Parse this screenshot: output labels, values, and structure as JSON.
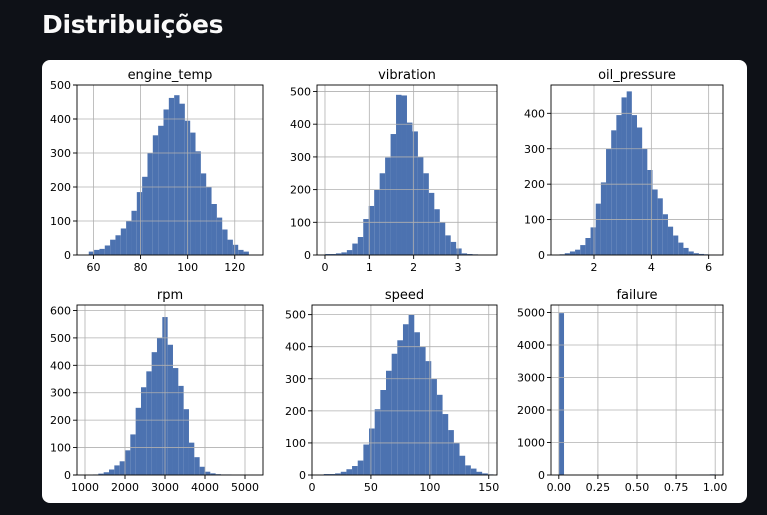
{
  "page": {
    "title": "Distribuições"
  },
  "colors": {
    "bar": "#4c72b0",
    "grid": "#b0b0b0",
    "background": "#0e1117",
    "card": "#ffffff"
  },
  "chart_data": [
    {
      "type": "bar",
      "title": "engine_temp",
      "xlabel": "",
      "ylabel": "",
      "bin_start": 58,
      "bin_width": 2.267,
      "values": [
        10,
        15,
        18,
        28,
        45,
        58,
        78,
        100,
        130,
        185,
        230,
        300,
        352,
        380,
        428,
        462,
        470,
        445,
        395,
        360,
        305,
        240,
        200,
        150,
        110,
        75,
        45,
        30,
        15,
        10
      ],
      "xlim": [
        53,
        132
      ],
      "ylim": [
        0,
        500
      ],
      "xticks": [
        60,
        80,
        100,
        120
      ],
      "yticks": [
        0,
        100,
        200,
        300,
        400,
        500
      ],
      "xtick_labels": [
        "60",
        "80",
        "100",
        "120"
      ],
      "ytick_labels": [
        "0",
        "100",
        "200",
        "300",
        "400",
        "500"
      ],
      "grid": true
    },
    {
      "type": "bar",
      "title": "vibration",
      "xlabel": "",
      "ylabel": "",
      "bin_start": 0,
      "bin_width": 0.1233,
      "values": [
        3,
        3,
        5,
        8,
        15,
        35,
        55,
        110,
        150,
        200,
        250,
        298,
        370,
        490,
        488,
        405,
        378,
        300,
        250,
        190,
        140,
        100,
        60,
        40,
        20,
        5,
        3,
        2,
        1,
        1
      ],
      "xlim": [
        -0.18,
        3.88
      ],
      "ylim": [
        0,
        520
      ],
      "xticks": [
        0,
        1,
        2,
        3
      ],
      "yticks": [
        0,
        100,
        200,
        300,
        400,
        500
      ],
      "xtick_labels": [
        "0",
        "1",
        "2",
        "3"
      ],
      "ytick_labels": [
        "0",
        "100",
        "200",
        "300",
        "400",
        "500"
      ],
      "grid": true
    },
    {
      "type": "bar",
      "title": "oil_pressure",
      "xlabel": "",
      "ylabel": "",
      "bin_start": 0.8,
      "bin_width": 0.18,
      "values": [
        2,
        5,
        10,
        15,
        28,
        48,
        78,
        145,
        205,
        300,
        352,
        395,
        445,
        462,
        395,
        360,
        300,
        240,
        185,
        160,
        115,
        80,
        55,
        35,
        20,
        10,
        5,
        3,
        2,
        1
      ],
      "xlim": [
        0.5,
        6.5
      ],
      "ylim": [
        0,
        480
      ],
      "xticks": [
        2,
        4,
        6
      ],
      "yticks": [
        0,
        100,
        200,
        300,
        400
      ],
      "xtick_labels": [
        "2",
        "4",
        "6"
      ],
      "ytick_labels": [
        "0",
        "100",
        "200",
        "300",
        "400"
      ],
      "grid": true
    },
    {
      "type": "bar",
      "title": "rpm",
      "xlabel": "",
      "ylabel": "",
      "bin_start": 1200,
      "bin_width": 133.3,
      "values": [
        2,
        5,
        10,
        20,
        35,
        50,
        90,
        148,
        245,
        320,
        378,
        448,
        500,
        576,
        475,
        390,
        325,
        240,
        118,
        65,
        30,
        12,
        6,
        3,
        2,
        2,
        1,
        1,
        1,
        1
      ],
      "xlim": [
        800,
        5450
      ],
      "ylim": [
        0,
        620
      ],
      "xticks": [
        1000,
        2000,
        3000,
        4000,
        5000
      ],
      "yticks": [
        0,
        100,
        200,
        300,
        400,
        500,
        600
      ],
      "xtick_labels": [
        "1000",
        "2000",
        "3000",
        "4000",
        "5000"
      ],
      "ytick_labels": [
        "0",
        "100",
        "200",
        "300",
        "400",
        "500",
        "600"
      ],
      "grid": true
    },
    {
      "type": "bar",
      "title": "speed",
      "xlabel": "",
      "ylabel": "",
      "bin_start": 10,
      "bin_width": 4.8,
      "values": [
        3,
        3,
        5,
        10,
        18,
        28,
        45,
        95,
        145,
        205,
        265,
        325,
        378,
        420,
        470,
        500,
        445,
        400,
        355,
        300,
        250,
        190,
        140,
        100,
        60,
        30,
        20,
        10,
        5,
        2
      ],
      "xlim": [
        0,
        157
      ],
      "ylim": [
        0,
        530
      ],
      "xticks": [
        0,
        50,
        100,
        150
      ],
      "yticks": [
        0,
        100,
        200,
        300,
        400,
        500
      ],
      "xtick_labels": [
        "0",
        "50",
        "100",
        "150"
      ],
      "ytick_labels": [
        "0",
        "100",
        "200",
        "300",
        "400",
        "500"
      ],
      "grid": true
    },
    {
      "type": "bar",
      "title": "failure",
      "xlabel": "",
      "ylabel": "",
      "bin_start": 0,
      "bin_width": 0.0333,
      "values": [
        4980,
        0,
        0,
        0,
        0,
        0,
        0,
        0,
        0,
        0,
        0,
        0,
        0,
        0,
        0,
        0,
        0,
        0,
        0,
        0,
        0,
        0,
        0,
        0,
        0,
        0,
        0,
        0,
        0,
        20
      ],
      "xlim": [
        -0.05,
        1.05
      ],
      "ylim": [
        0,
        5230
      ],
      "xticks": [
        0,
        0.25,
        0.5,
        0.75,
        1.0
      ],
      "yticks": [
        0,
        1000,
        2000,
        3000,
        4000,
        5000
      ],
      "xtick_labels": [
        "0.00",
        "0.25",
        "0.50",
        "0.75",
        "1.00"
      ],
      "ytick_labels": [
        "0",
        "1000",
        "2000",
        "3000",
        "4000",
        "5000"
      ],
      "grid": true
    }
  ]
}
